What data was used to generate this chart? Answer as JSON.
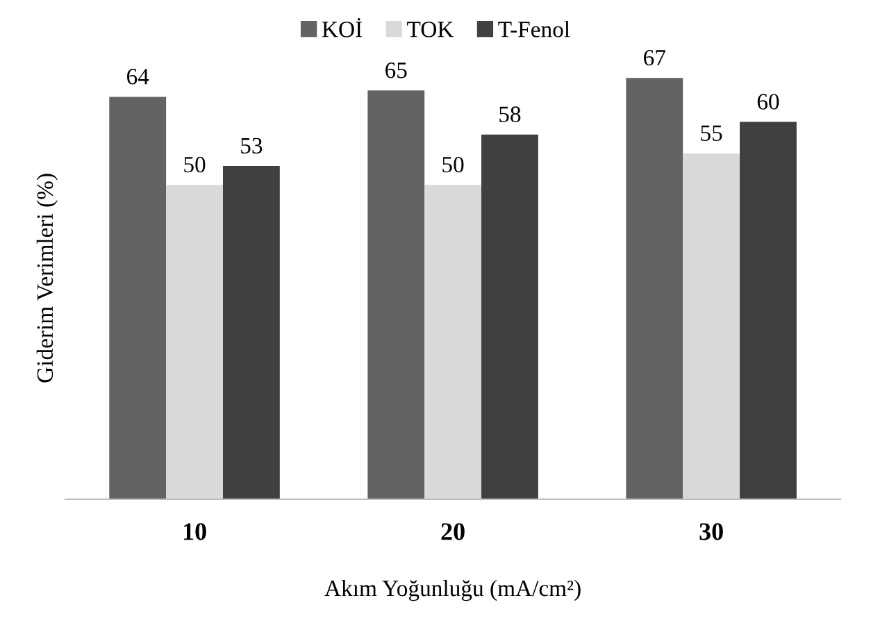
{
  "chart_data": {
    "type": "bar",
    "xlabel": "Akım Yoğunluğu (mA/cm²)",
    "ylabel": "Giderim Verimleri (%)",
    "categories": [
      "10",
      "20",
      "30"
    ],
    "series": [
      {
        "name": "KOİ",
        "color": "#636363",
        "values": [
          64,
          65,
          67
        ]
      },
      {
        "name": "TOK",
        "color": "#d9d9d9",
        "values": [
          50,
          50,
          55
        ]
      },
      {
        "name": "T-Fenol",
        "color": "#404040",
        "values": [
          53,
          58,
          60
        ]
      }
    ],
    "data_labels": true,
    "legend": "top",
    "grid": false
  }
}
